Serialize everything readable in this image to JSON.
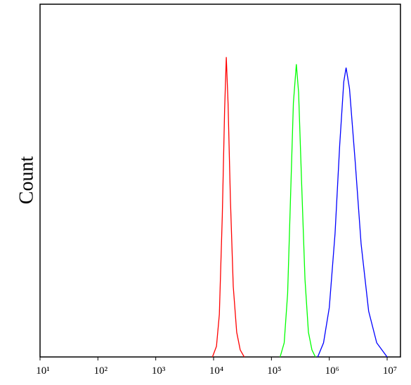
{
  "chart_data": {
    "type": "line",
    "ylabel": "Count",
    "xscale": "log",
    "xlim": [
      10,
      17000000
    ],
    "ylim": [
      0,
      100
    ],
    "xticks": [
      {
        "value": 10,
        "label": "10¹"
      },
      {
        "value": 100,
        "label": "10²"
      },
      {
        "value": 1000,
        "label": "10³"
      },
      {
        "value": 10000,
        "label": "10⁴"
      },
      {
        "value": 100000,
        "label": "10⁵"
      },
      {
        "value": 1000000,
        "label": "10⁶"
      },
      {
        "value": 10000000,
        "label": "10⁷"
      }
    ],
    "series": [
      {
        "color": "#ff0000",
        "x": [
          9550,
          11220,
          12590,
          14130,
          15490,
          16600,
          17780,
          19500,
          21880,
          25120,
          28840,
          33880
        ],
        "values": [
          0,
          3,
          12,
          40,
          70,
          85,
          72,
          45,
          20,
          7,
          2,
          0
        ]
      },
      {
        "color": "#00ff00",
        "x": [
          141300,
          165960,
          190550,
          213800,
          239900,
          269200,
          295100,
          331100,
          380200,
          436500,
          501200,
          575400
        ],
        "values": [
          0,
          4,
          18,
          45,
          72,
          83,
          75,
          50,
          22,
          7,
          2,
          0
        ]
      },
      {
        "color": "#0000ff",
        "x": [
          631000,
          794300,
          1000000,
          1259000,
          1514000,
          1778000,
          1950000,
          2239000,
          2818000,
          3548000,
          4786000,
          6607000,
          10000000
        ],
        "values": [
          0,
          4,
          14,
          35,
          60,
          78,
          82,
          76,
          55,
          32,
          13,
          4,
          0
        ]
      }
    ]
  }
}
